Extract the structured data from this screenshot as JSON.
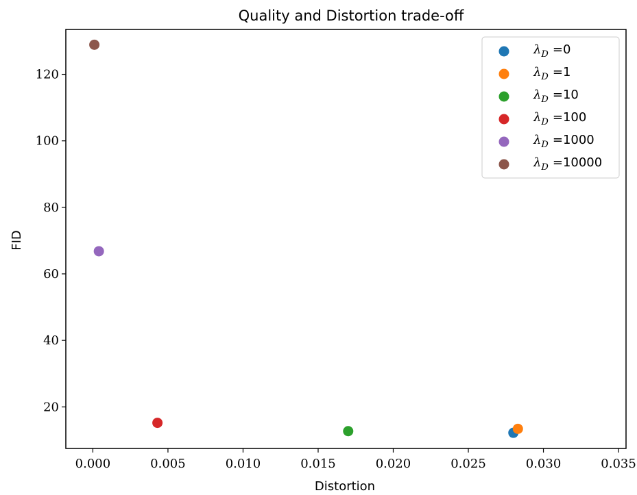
{
  "chart_data": {
    "type": "scatter",
    "title": "Quality and Distortion trade-off",
    "xlabel": "Distortion",
    "ylabel": "FID",
    "xlim": [
      -0.0018,
      0.0355
    ],
    "ylim": [
      7.5,
      133.5
    ],
    "xticks": [
      0.0,
      0.005,
      0.01,
      0.015,
      0.02,
      0.025,
      0.03,
      0.035
    ],
    "xtick_labels": [
      "0.000",
      "0.005",
      "0.010",
      "0.015",
      "0.020",
      "0.025",
      "0.030",
      "0.035"
    ],
    "yticks": [
      20,
      40,
      60,
      80,
      100,
      120
    ],
    "ytick_labels": [
      "20",
      "40",
      "60",
      "80",
      "100",
      "120"
    ],
    "grid": false,
    "legend_position": "top-right",
    "series": [
      {
        "name": "λ_D = 0",
        "legend_value": "=0",
        "color": "#1f77b4",
        "points": [
          {
            "x": 0.028,
            "y": 12.2
          }
        ]
      },
      {
        "name": "λ_D = 1",
        "legend_value": "=1",
        "color": "#ff7f0e",
        "points": [
          {
            "x": 0.0283,
            "y": 13.4
          }
        ]
      },
      {
        "name": "λ_D = 10",
        "legend_value": "=10",
        "color": "#2ca02c",
        "points": [
          {
            "x": 0.017,
            "y": 12.7
          }
        ]
      },
      {
        "name": "λ_D = 100",
        "legend_value": "=100",
        "color": "#d62728",
        "points": [
          {
            "x": 0.0043,
            "y": 15.2
          }
        ]
      },
      {
        "name": "λ_D = 1000",
        "legend_value": "=1000",
        "color": "#9467bd",
        "points": [
          {
            "x": 0.0004,
            "y": 66.8
          }
        ]
      },
      {
        "name": "λ_D = 10000",
        "legend_value": "=10000",
        "color": "#8c564b",
        "points": [
          {
            "x": 0.0001,
            "y": 128.9
          }
        ]
      }
    ]
  }
}
